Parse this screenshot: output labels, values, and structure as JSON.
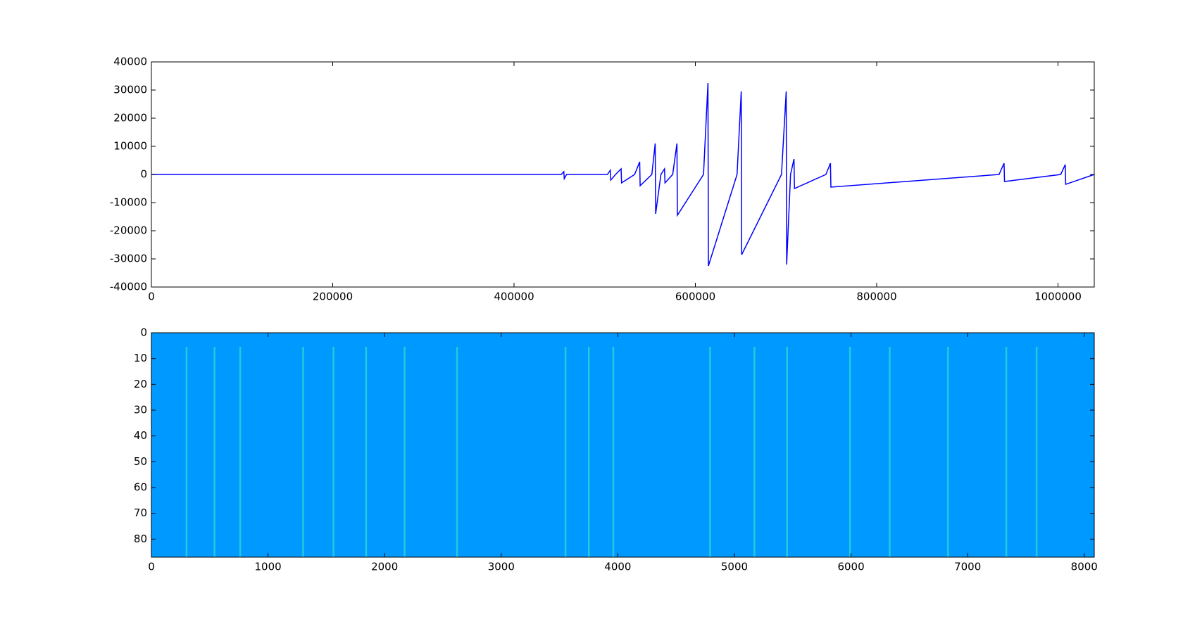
{
  "chart_data": [
    {
      "type": "line",
      "x": [
        0,
        452000,
        454900,
        455400,
        458000,
        503000,
        506200,
        506700,
        512000,
        518100,
        518600,
        533000,
        538600,
        539100,
        552000,
        555700,
        556200,
        562000,
        566000,
        566500,
        575000,
        579700,
        580200,
        609000,
        613900,
        614400,
        646000,
        650600,
        651100,
        695000,
        700200,
        700700,
        705000,
        708800,
        709300,
        744000,
        749000,
        749500,
        935000,
        940500,
        941000,
        1003000,
        1008000,
        1008500,
        1040000
      ],
      "series": [
        {
          "color": "#0000ff",
          "values": [
            0,
            0,
            1000,
            -1500,
            0,
            0,
            1500,
            -2000,
            0,
            2000,
            -3000,
            0,
            4500,
            -4000,
            0,
            11000,
            -14000,
            0,
            2000,
            -3000,
            0,
            11000,
            -14500,
            0,
            32500,
            -32500,
            0,
            29500,
            -28500,
            0,
            29500,
            -32000,
            0,
            5500,
            -5000,
            0,
            4000,
            -4500,
            0,
            4000,
            -2500,
            0,
            3500,
            -3500,
            0
          ]
        }
      ],
      "xlim": [
        0,
        1040000
      ],
      "ylim": [
        -40000,
        40000
      ],
      "xticks": [
        0,
        200000,
        400000,
        600000,
        800000,
        1000000
      ],
      "yticks": [
        -40000,
        -30000,
        -20000,
        -10000,
        0,
        10000,
        20000,
        30000,
        40000
      ]
    },
    {
      "type": "heatmap",
      "color": "#0099ff",
      "stripe_color": "#33ddcc",
      "x": [
        300,
        540,
        760,
        1300,
        1560,
        1840,
        2170,
        2620,
        3550,
        3750,
        3960,
        4790,
        5170,
        5450,
        5990,
        6330,
        6830,
        7330,
        7590
      ],
      "xlim": [
        0,
        8086
      ],
      "ylim": [
        87,
        0
      ],
      "xticks": [
        0,
        1000,
        2000,
        3000,
        4000,
        5000,
        6000,
        7000,
        8000
      ],
      "yticks": [
        0,
        10,
        20,
        30,
        40,
        50,
        60,
        70,
        80
      ]
    }
  ]
}
